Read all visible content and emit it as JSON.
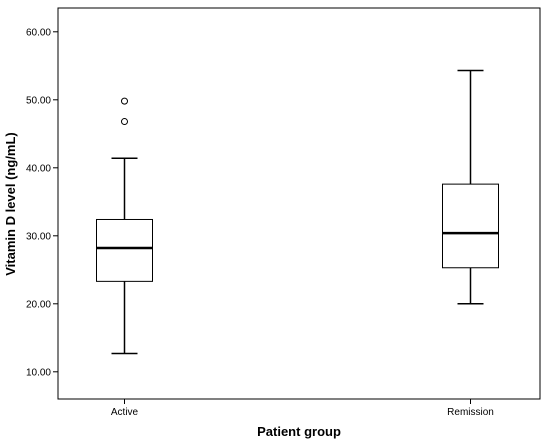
{
  "chart_data": {
    "type": "box",
    "xlabel": "Patient group",
    "ylabel": "Vitamin D level (ng/mL)",
    "categories": [
      "Active",
      "Remission"
    ],
    "ylim": [
      6.0,
      63.5
    ],
    "yticks": [
      10,
      20,
      30,
      40,
      50,
      60
    ],
    "ytick_labels": [
      "10.00",
      "20.00",
      "30.00",
      "40.00",
      "50.00",
      "60.00"
    ],
    "grid": false,
    "boxes": [
      {
        "category": "Active",
        "whisker_low": 12.7,
        "q1": 23.3,
        "median": 28.2,
        "q3": 32.4,
        "whisker_high": 41.4,
        "outliers": [
          46.8,
          49.8
        ]
      },
      {
        "category": "Remission",
        "whisker_low": 20.0,
        "q1": 25.3,
        "median": 30.4,
        "q3": 37.6,
        "whisker_high": 54.3,
        "outliers": []
      }
    ],
    "colors": {
      "box_fill": "#ffffff",
      "stroke": "#000000",
      "background": "#ffffff"
    }
  }
}
